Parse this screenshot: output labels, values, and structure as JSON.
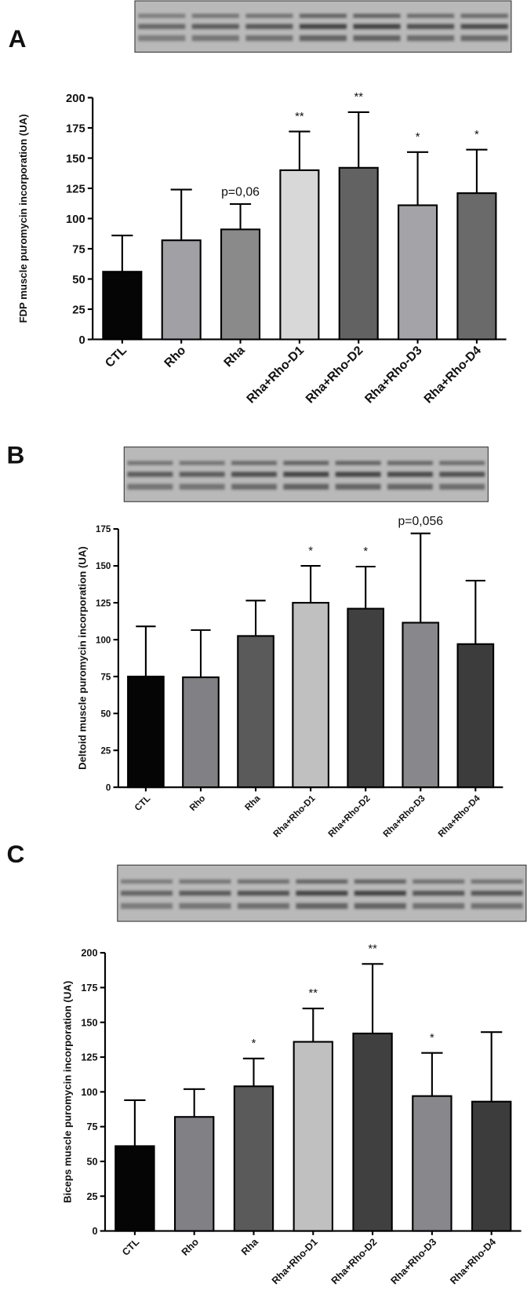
{
  "chart_data": [
    {
      "type": "bar",
      "panel": "A",
      "y_label": "FDP muscle puromycin incorporation (UA)",
      "categories": [
        "CTL",
        "Rho",
        "Rha",
        "Rha+Rho-D1",
        "Rha+Rho-D2",
        "Rha+Rho-D3",
        "Rha+Rho-D4"
      ],
      "values": [
        56,
        82,
        91,
        140,
        142,
        111,
        121
      ],
      "errors": [
        30,
        42,
        21,
        32,
        46,
        44,
        36
      ],
      "colors": [
        "#050505",
        "#a0a0a5",
        "#8a8a8a",
        "#d8d8d8",
        "#626262",
        "#a3a3a8",
        "#6a6a6a"
      ],
      "annotations": [
        null,
        null,
        "p=0,06",
        "**",
        "**",
        "*",
        "*"
      ],
      "ylim": [
        0,
        200
      ],
      "yticks": [
        0,
        25,
        50,
        75,
        100,
        125,
        150,
        175,
        200
      ]
    },
    {
      "type": "bar",
      "panel": "B",
      "y_label": "Deltoid muscle puromycin incorporation (UA)",
      "categories": [
        "CTL",
        "Rho",
        "Rha",
        "Rha+Rho-D1",
        "Rha+Rho-D2",
        "Rha+Rho-D3",
        "Rha+Rho-D4"
      ],
      "values": [
        75,
        74.5,
        102.5,
        125,
        121,
        111.5,
        97
      ],
      "errors": [
        34,
        32,
        24,
        25,
        28.5,
        60.5,
        43
      ],
      "colors": [
        "#050505",
        "#808085",
        "#5a5a5a",
        "#c0c0c0",
        "#404040",
        "#88888c",
        "#3c3c3c"
      ],
      "annotations": [
        null,
        null,
        null,
        "*",
        "*",
        "p=0,056",
        null
      ],
      "ylim": [
        0,
        175
      ],
      "yticks": [
        0,
        25,
        50,
        75,
        100,
        125,
        150,
        175
      ]
    },
    {
      "type": "bar",
      "panel": "C",
      "y_label": "Biceps muscle puromycin incorporation (UA)",
      "categories": [
        "CTL",
        "Rho",
        "Rha",
        "Rha+Rho-D1",
        "Rha+Rho-D2",
        "Rha+Rho-D3",
        "Rha+Rho-D4"
      ],
      "values": [
        61,
        82,
        104,
        136,
        142,
        97,
        93
      ],
      "errors": [
        33,
        20,
        20,
        24,
        50,
        31,
        50
      ],
      "colors": [
        "#050505",
        "#808085",
        "#5a5a5a",
        "#c0c0c0",
        "#404040",
        "#88888c",
        "#3c3c3c"
      ],
      "annotations": [
        null,
        null,
        "*",
        "**",
        "**",
        "*",
        null
      ],
      "ylim": [
        0,
        200
      ],
      "yticks": [
        0,
        25,
        50,
        75,
        100,
        125,
        150,
        175,
        200
      ]
    }
  ]
}
